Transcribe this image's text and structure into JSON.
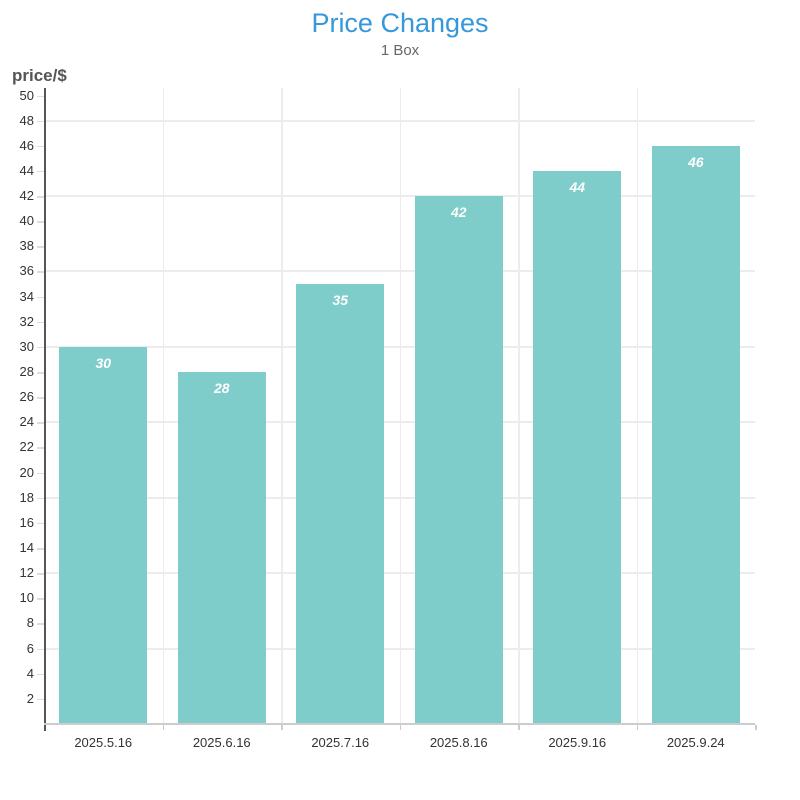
{
  "chart_data": {
    "type": "bar",
    "title": "Price Changes",
    "subtitle": "1 Box",
    "ylabel": "price/$",
    "xlabel": "",
    "categories": [
      "2025.5.16",
      "2025.6.16",
      "2025.7.16",
      "2025.8.16",
      "2025.9.16",
      "2025.9.24"
    ],
    "values": [
      30,
      28,
      35,
      42,
      44,
      46
    ],
    "value_labels": [
      "30",
      "28",
      "35",
      "42",
      "44",
      "46"
    ],
    "y_ticks": [
      2,
      4,
      6,
      8,
      10,
      12,
      14,
      16,
      18,
      20,
      22,
      24,
      26,
      28,
      30,
      32,
      34,
      36,
      38,
      40,
      42,
      44,
      46,
      48,
      50
    ],
    "grid_values": [
      6,
      12,
      18,
      24,
      30,
      36,
      42,
      48
    ],
    "ylim": [
      0,
      50.5
    ],
    "grid": true,
    "legend_position": "none",
    "colors": {
      "title": "#3598db",
      "subtitle": "#676767",
      "ylabel": "#555555",
      "bar": "#7ecdcb",
      "bar_value_text": "#ffffff",
      "tick_label": "#333333",
      "y_axis_line": "#555555",
      "x_axis_line": "#cccccc",
      "tick_mark": "#dddddd",
      "gridline": "#ececec",
      "background": "#ffffff"
    }
  }
}
